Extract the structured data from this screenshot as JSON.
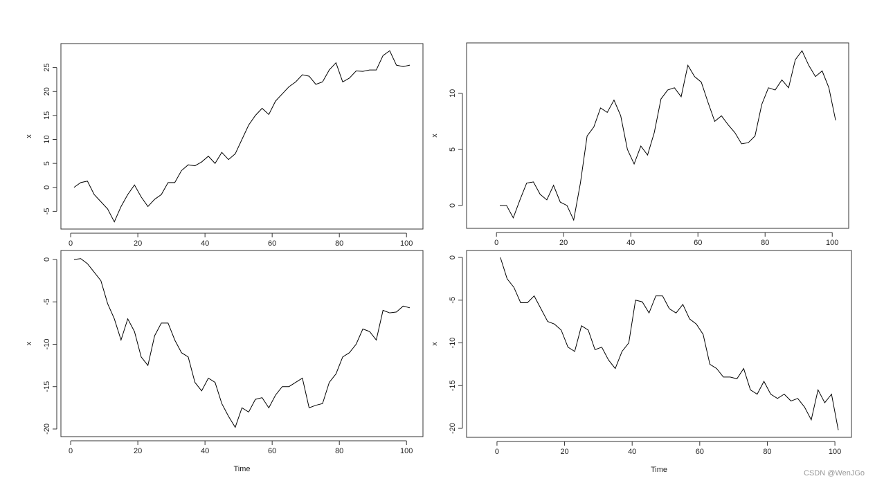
{
  "chart_data": [
    {
      "type": "line",
      "ylabel": "x",
      "x": [
        1,
        3,
        5,
        7,
        9,
        11,
        13,
        15,
        17,
        19,
        21,
        23,
        25,
        27,
        29,
        31,
        33,
        35,
        37,
        39,
        41,
        43,
        45,
        47,
        49,
        51,
        53,
        55,
        57,
        59,
        61,
        63,
        65,
        67,
        69,
        71,
        73,
        75,
        77,
        79,
        81,
        83,
        85,
        87,
        89,
        91,
        93,
        95,
        97,
        99,
        101
      ],
      "values": [
        0,
        1,
        1.3,
        -1.5,
        -3,
        -4.5,
        -7.2,
        -4,
        -1.5,
        0.5,
        -2,
        -4,
        -2.5,
        -1.5,
        1,
        1,
        3.5,
        4.7,
        4.5,
        5.3,
        6.5,
        5,
        7.3,
        5.8,
        7,
        10,
        13,
        15,
        16.5,
        15.2,
        18,
        19.5,
        21,
        22,
        23.5,
        23.2,
        21.5,
        22,
        24.5,
        26,
        22,
        22.8,
        24.3,
        24.2,
        24.5,
        24.5,
        27.5,
        28.5,
        25.5,
        25.2,
        25.5
      ],
      "color": "#000000",
      "xlim": [
        -2.9,
        104.9
      ],
      "ylim": [
        -8.7,
        30
      ],
      "xticks": [
        0,
        20,
        40,
        60,
        80,
        100
      ],
      "yticks": [
        -5,
        0,
        5,
        10,
        15,
        20,
        25
      ]
    },
    {
      "type": "line",
      "ylabel": "x",
      "x": [
        1,
        3,
        5,
        7,
        9,
        11,
        13,
        15,
        17,
        19,
        21,
        23,
        25,
        27,
        29,
        31,
        33,
        35,
        37,
        39,
        41,
        43,
        45,
        47,
        49,
        51,
        53,
        55,
        57,
        59,
        61,
        63,
        65,
        67,
        69,
        71,
        73,
        75,
        77,
        79,
        81,
        83,
        85,
        87,
        89,
        91,
        93,
        95,
        97,
        99,
        101
      ],
      "values": [
        0,
        0,
        -1.1,
        0.5,
        2,
        2.1,
        1,
        0.5,
        1.8,
        0.3,
        0,
        -1.3,
        2,
        6.2,
        7,
        8.7,
        8.3,
        9.4,
        8,
        5,
        3.7,
        5.3,
        4.5,
        6.5,
        9.5,
        10.3,
        10.5,
        9.7,
        12.5,
        11.5,
        11,
        9.2,
        7.5,
        8,
        7.2,
        6.5,
        5.5,
        5.6,
        6.2,
        9,
        10.5,
        10.3,
        11.2,
        10.5,
        13,
        13.8,
        12.5,
        11.5,
        12,
        10.5,
        7.6
      ],
      "color": "#000000",
      "xlim": [
        -8.9,
        104.9
      ],
      "ylim": [
        -2.04,
        14.5
      ],
      "xticks": [
        0,
        20,
        40,
        60,
        80,
        100
      ],
      "yticks": [
        0,
        5,
        10
      ]
    },
    {
      "type": "line",
      "ylabel": "x",
      "xlabel": "Time",
      "x": [
        1,
        3,
        5,
        7,
        9,
        11,
        13,
        15,
        17,
        19,
        21,
        23,
        25,
        27,
        29,
        31,
        33,
        35,
        37,
        39,
        41,
        43,
        45,
        47,
        49,
        51,
        53,
        55,
        57,
        59,
        61,
        63,
        65,
        67,
        69,
        71,
        73,
        75,
        77,
        79,
        81,
        83,
        85,
        87,
        89,
        91,
        93,
        95,
        97,
        99,
        101
      ],
      "values": [
        0,
        0.1,
        -0.5,
        -1.5,
        -2.5,
        -5.2,
        -7,
        -9.5,
        -7,
        -8.5,
        -11.5,
        -12.5,
        -9,
        -7.5,
        -7.5,
        -9.5,
        -11,
        -11.5,
        -14.5,
        -15.5,
        -14,
        -14.5,
        -17,
        -18.5,
        -19.8,
        -17.5,
        -18,
        -16.5,
        -16.3,
        -17.5,
        -16,
        -15,
        -15,
        -14.5,
        -14,
        -17.5,
        -17.2,
        -17,
        -14.5,
        -13.5,
        -11.5,
        -11,
        -10,
        -8.2,
        -8.5,
        -9.5,
        -6,
        -6.3,
        -6.2,
        -5.5,
        -5.7
      ],
      "color": "#000000",
      "xlim": [
        -2.9,
        104.9
      ],
      "ylim": [
        -20.9,
        1.06
      ],
      "xticks": [
        0,
        20,
        40,
        60,
        80,
        100
      ],
      "yticks": [
        -20,
        -15,
        -10,
        -5,
        0
      ]
    },
    {
      "type": "line",
      "ylabel": "x",
      "xlabel": "Time",
      "x": [
        1,
        3,
        5,
        7,
        9,
        11,
        13,
        15,
        17,
        19,
        21,
        23,
        25,
        27,
        29,
        31,
        33,
        35,
        37,
        39,
        41,
        43,
        45,
        47,
        49,
        51,
        53,
        55,
        57,
        59,
        61,
        63,
        65,
        67,
        69,
        71,
        73,
        75,
        77,
        79,
        81,
        83,
        85,
        87,
        89,
        91,
        93,
        95,
        97,
        99,
        101
      ],
      "values": [
        0,
        -2.5,
        -3.5,
        -5.3,
        -5.3,
        -4.5,
        -6,
        -7.5,
        -7.8,
        -8.5,
        -10.5,
        -11,
        -8,
        -8.5,
        -10.8,
        -10.5,
        -12,
        -13,
        -11,
        -10,
        -5,
        -5.2,
        -6.5,
        -4.5,
        -4.5,
        -6,
        -6.5,
        -5.5,
        -7.2,
        -7.8,
        -9,
        -12.5,
        -13,
        -14,
        -14,
        -14.2,
        -13,
        -15.5,
        -16,
        -14.5,
        -16,
        -16.5,
        -16,
        -16.8,
        -16.5,
        -17.5,
        -19,
        -15.5,
        -17,
        -16,
        -20.2
      ],
      "color": "#000000",
      "xlim": [
        -9.0,
        104.9
      ],
      "ylim": [
        -21.05,
        0.81
      ],
      "xticks": [
        0,
        20,
        40,
        60,
        80,
        100
      ],
      "yticks": [
        -20,
        -15,
        -10,
        -5,
        0
      ]
    }
  ],
  "watermark": "CSDN @WenJGo"
}
